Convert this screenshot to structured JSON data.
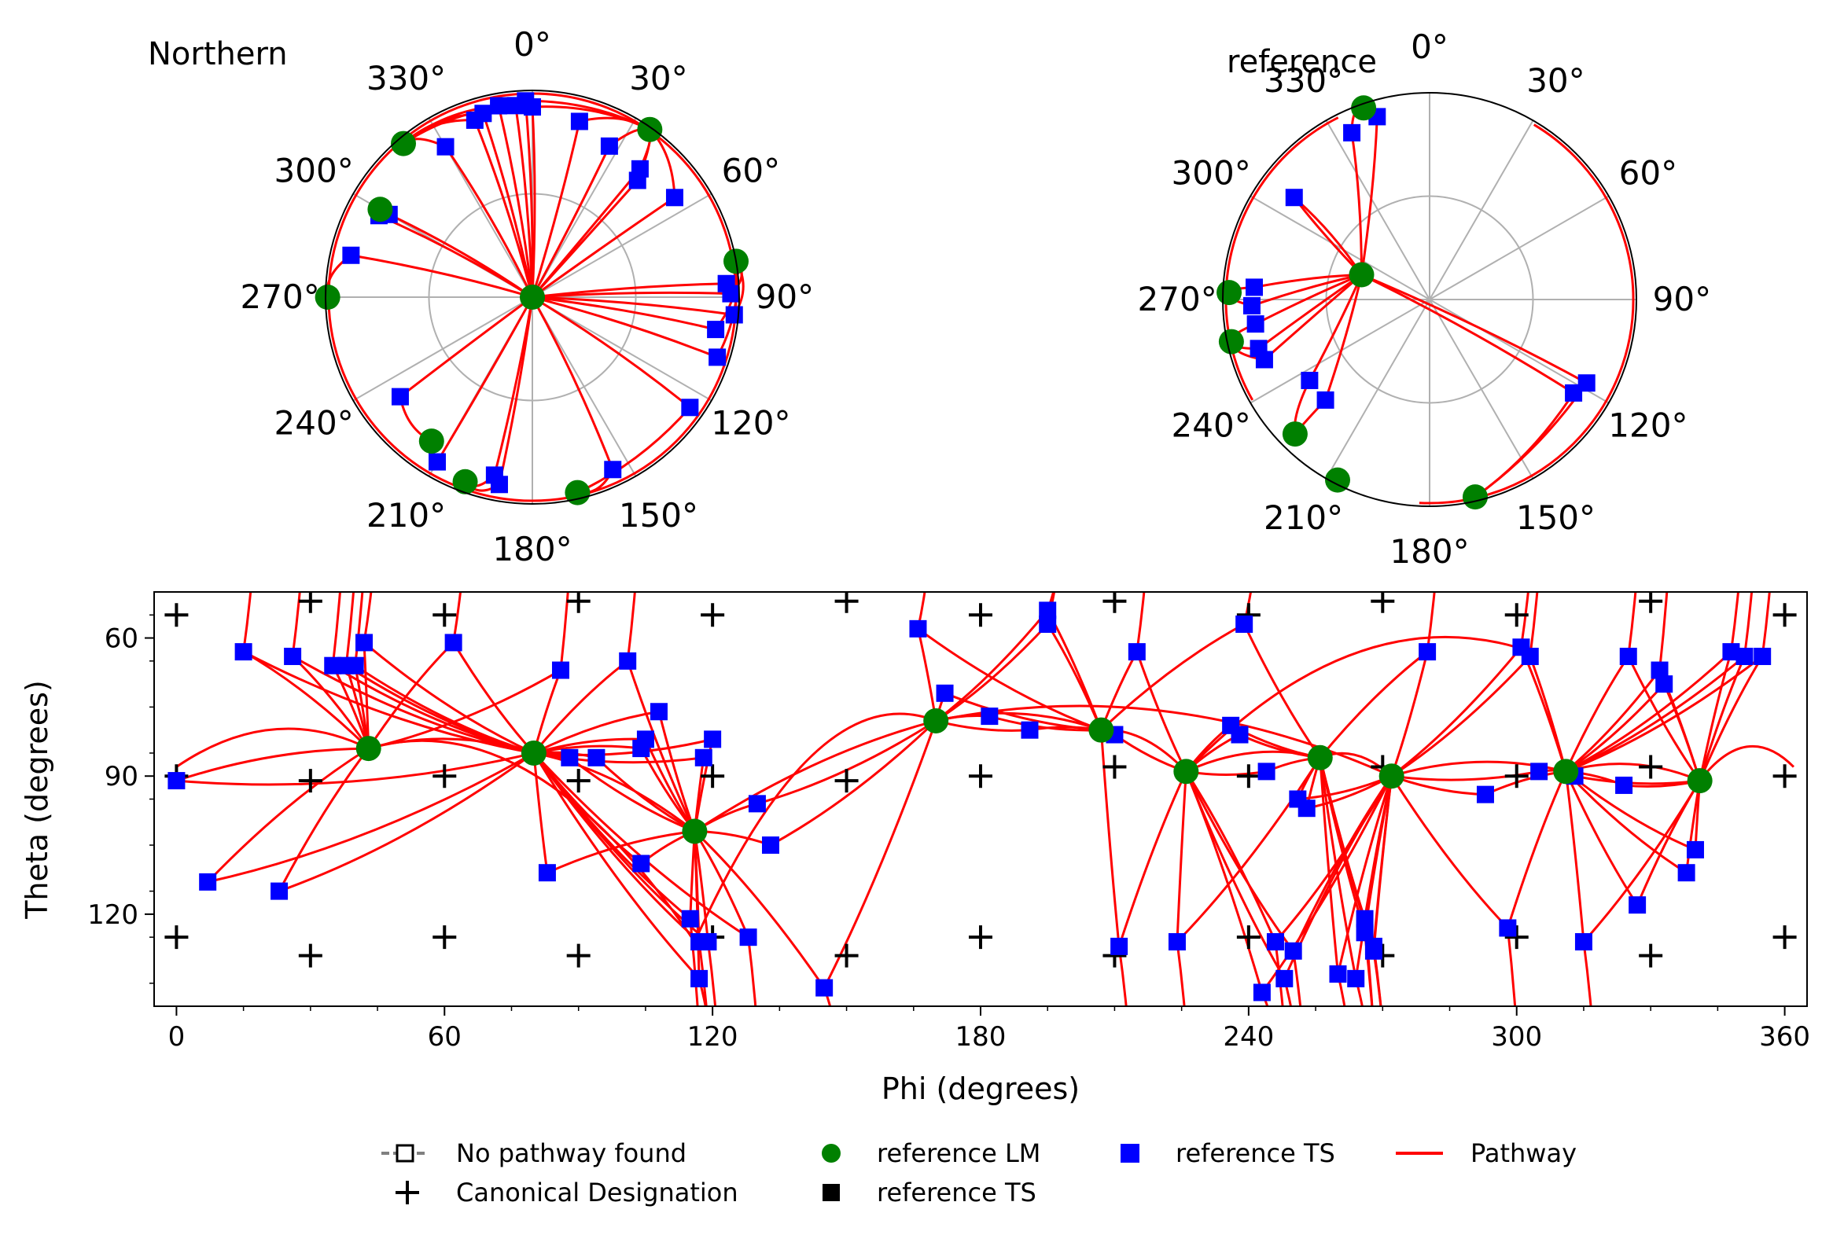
{
  "chart_data": [
    {
      "type": "scatter",
      "projection": "polar",
      "title": "Northern",
      "angular_ticks": [
        "0°",
        "30°",
        "60°",
        "90°",
        "120°",
        "150°",
        "180°",
        "210°",
        "240°",
        "270°",
        "300°",
        "330°"
      ],
      "theta_direction": "clockwise",
      "theta_zero": "top",
      "radial_grid": "on",
      "series": [
        {
          "name": "reference LM",
          "color": "#008000",
          "marker": "circle",
          "points": [
            [
              0,
              0
            ],
            [
              35,
              0.99
            ],
            [
              80,
              1.0
            ],
            [
              270,
              0.99
            ],
            [
              300,
              0.85
            ],
            [
              320,
              0.97
            ],
            [
              215,
              0.85
            ],
            [
              200,
              0.95
            ],
            [
              167,
              0.97
            ]
          ]
        },
        {
          "name": "reference TS",
          "color": "#0000ff",
          "marker": "square",
          "points": [
            [
              0,
              0.92
            ],
            [
              15,
              0.88
            ],
            [
              27,
              0.82
            ],
            [
              40,
              0.81
            ],
            [
              42,
              0.76
            ],
            [
              55,
              0.84
            ],
            [
              86,
              0.94
            ],
            [
              89,
              0.96
            ],
            [
              95,
              0.98
            ],
            [
              100,
              0.9
            ],
            [
              108,
              0.94
            ],
            [
              125,
              0.93
            ],
            [
              155,
              0.92
            ],
            [
              190,
              0.92
            ],
            [
              192,
              0.88
            ],
            [
              210,
              0.92
            ],
            [
              233,
              0.8
            ],
            [
              283,
              0.9
            ],
            [
              298,
              0.84
            ],
            [
              300,
              0.8
            ],
            [
              330,
              0.84
            ],
            [
              342,
              0.9
            ],
            [
              345,
              0.92
            ],
            [
              350,
              0.94
            ],
            [
              355,
              0.93
            ],
            [
              358,
              0.95
            ]
          ]
        }
      ]
    },
    {
      "type": "scatter",
      "projection": "polar",
      "title": "reference",
      "angular_ticks": [
        "0°",
        "30°",
        "60°",
        "90°",
        "120°",
        "150°",
        "180°",
        "210°",
        "240°",
        "270°",
        "300°",
        "330°"
      ],
      "theta_direction": "clockwise",
      "theta_zero": "top",
      "radial_grid": "on",
      "series": [
        {
          "name": "reference LM",
          "color": "#008000",
          "marker": "circle",
          "points": [
            [
              290,
              0.35
            ],
            [
              272,
              0.97
            ],
            [
              258,
              0.98
            ],
            [
              225,
              0.92
            ],
            [
              207,
              0.98
            ],
            [
              167,
              0.98
            ],
            [
              341,
              0.98
            ]
          ]
        },
        {
          "name": "reference TS",
          "color": "#0000ff",
          "marker": "square",
          "points": [
            [
              344,
              0.92
            ],
            [
              335,
              0.89
            ],
            [
              307,
              0.82
            ],
            [
              274,
              0.85
            ],
            [
              268,
              0.86
            ],
            [
              262,
              0.85
            ],
            [
              254,
              0.86
            ],
            [
              250,
              0.85
            ],
            [
              236,
              0.7
            ],
            [
              226,
              0.7
            ],
            [
              118,
              0.86
            ],
            [
              123,
              0.83
            ]
          ]
        }
      ]
    },
    {
      "type": "scatter",
      "xlabel": "Phi (degrees)",
      "ylabel": "Theta (degrees)",
      "xlim": [
        -5,
        365
      ],
      "ylim": [
        140,
        50
      ],
      "y_inverted": true,
      "xticks": [
        0,
        60,
        120,
        180,
        240,
        300,
        360
      ],
      "yticks": [
        60,
        90,
        120
      ],
      "grid": "off",
      "series": [
        {
          "name": "reference LM",
          "color": "#008000",
          "marker": "circle",
          "points": [
            [
              43,
              84
            ],
            [
              80,
              85
            ],
            [
              116,
              102
            ],
            [
              170,
              78
            ],
            [
              207,
              80
            ],
            [
              226,
              89
            ],
            [
              256,
              86
            ],
            [
              272,
              90
            ],
            [
              311,
              89
            ],
            [
              341,
              91
            ]
          ]
        },
        {
          "name": "reference TS",
          "color": "#0000ff",
          "marker": "square",
          "points": [
            [
              0,
              91
            ],
            [
              7,
              113
            ],
            [
              15,
              63
            ],
            [
              23,
              115
            ],
            [
              26,
              64
            ],
            [
              35,
              66
            ],
            [
              38,
              66
            ],
            [
              40,
              66
            ],
            [
              42,
              61
            ],
            [
              62,
              61
            ],
            [
              83,
              111
            ],
            [
              86,
              67
            ],
            [
              88,
              86
            ],
            [
              94,
              86
            ],
            [
              101,
              65
            ],
            [
              104,
              84
            ],
            [
              104,
              109
            ],
            [
              105,
              82
            ],
            [
              108,
              76
            ],
            [
              115,
              121
            ],
            [
              117,
              126
            ],
            [
              117,
              134
            ],
            [
              118,
              86
            ],
            [
              119,
              126
            ],
            [
              120,
              82
            ],
            [
              130,
              96
            ],
            [
              128,
              125
            ],
            [
              133,
              105
            ],
            [
              145,
              136
            ],
            [
              166,
              58
            ],
            [
              172,
              72
            ],
            [
              182,
              77
            ],
            [
              191,
              80
            ],
            [
              195,
              54
            ],
            [
              195,
              57
            ],
            [
              210,
              81
            ],
            [
              211,
              127
            ],
            [
              215,
              63
            ],
            [
              224,
              126
            ],
            [
              236,
              79
            ],
            [
              238,
              81
            ],
            [
              239,
              57
            ],
            [
              243,
              137
            ],
            [
              244,
              89
            ],
            [
              246,
              126
            ],
            [
              248,
              134
            ],
            [
              250,
              128
            ],
            [
              251,
              95
            ],
            [
              253,
              97
            ],
            [
              260,
              133
            ],
            [
              264,
              134
            ],
            [
              266,
              121
            ],
            [
              266,
              124
            ],
            [
              268,
              127
            ],
            [
              268,
              128
            ],
            [
              280,
              63
            ],
            [
              293,
              94
            ],
            [
              298,
              123
            ],
            [
              301,
              62
            ],
            [
              303,
              64
            ],
            [
              305,
              89
            ],
            [
              313,
              90
            ],
            [
              315,
              126
            ],
            [
              324,
              92
            ],
            [
              325,
              64
            ],
            [
              327,
              118
            ],
            [
              332,
              67
            ],
            [
              333,
              70
            ],
            [
              338,
              111
            ],
            [
              340,
              106
            ],
            [
              348,
              63
            ],
            [
              351,
              64
            ],
            [
              355,
              64
            ]
          ]
        },
        {
          "name": "Canonical Designation",
          "color": "#000000",
          "marker": "plus",
          "points": [
            [
              0,
              55
            ],
            [
              0,
              90
            ],
            [
              0,
              125
            ],
            [
              30,
              52
            ],
            [
              30,
              91
            ],
            [
              30,
              129
            ],
            [
              60,
              55
            ],
            [
              60,
              90
            ],
            [
              60,
              125
            ],
            [
              90,
              52
            ],
            [
              90,
              91
            ],
            [
              90,
              129
            ],
            [
              120,
              55
            ],
            [
              120,
              90
            ],
            [
              120,
              125
            ],
            [
              150,
              52
            ],
            [
              150,
              91
            ],
            [
              150,
              129
            ],
            [
              180,
              55
            ],
            [
              180,
              90
            ],
            [
              180,
              125
            ],
            [
              210,
              52
            ],
            [
              210,
              88
            ],
            [
              210,
              129
            ],
            [
              240,
              55
            ],
            [
              240,
              90
            ],
            [
              240,
              125
            ],
            [
              270,
              52
            ],
            [
              270,
              88
            ],
            [
              270,
              129
            ],
            [
              300,
              55
            ],
            [
              300,
              90
            ],
            [
              300,
              125
            ],
            [
              330,
              52
            ],
            [
              330,
              88
            ],
            [
              330,
              129
            ],
            [
              360,
              55
            ],
            [
              360,
              90
            ],
            [
              360,
              125
            ]
          ]
        }
      ]
    }
  ],
  "legend": {
    "placement": "bottom",
    "entries": [
      {
        "label": "No pathway found",
        "icon": "hollow-square-dashed"
      },
      {
        "label": "reference LM",
        "icon": "green-circle",
        "color": "#008000"
      },
      {
        "label": "reference TS",
        "icon": "blue-square",
        "color": "#0000ff"
      },
      {
        "label": "Pathway",
        "icon": "red-line",
        "color": "#ff0000"
      },
      {
        "label": "Canonical Designation",
        "icon": "black-plus",
        "color": "#000000"
      },
      {
        "label": "reference TS",
        "icon": "black-square",
        "color": "#000000"
      }
    ]
  },
  "colors": {
    "pathway": "#ff0000",
    "lm": "#008000",
    "ts": "#0000ff",
    "canonical": "#000000",
    "grid": "#b0b0b0"
  }
}
